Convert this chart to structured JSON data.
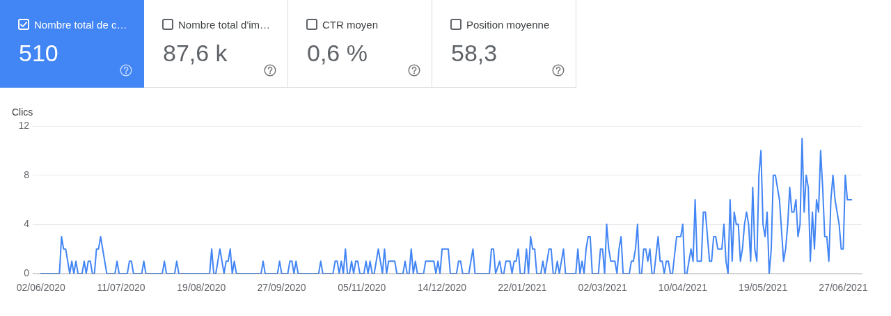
{
  "chart_data": [
    {
      "type": "other",
      "categories": [
        "Nombre total de c…",
        "Nombre total d'im…",
        "CTR moyen",
        "Position moyenne"
      ],
      "value_labels": [
        "510",
        "87,6 k",
        "0,6 %",
        "58,3"
      ],
      "colors": [
        "#4285f4",
        null,
        null,
        null
      ]
    },
    {
      "type": "line",
      "ylabel": "Clics",
      "color": "#4285f4",
      "x": [
        "2020-06-02",
        "2020-06-11",
        "2020-06-12",
        "2020-06-13",
        "2020-06-14",
        "2020-06-16",
        "2020-06-17",
        "2020-06-18",
        "2020-06-19",
        "2020-06-20",
        "2020-06-22",
        "2020-06-23",
        "2020-06-24",
        "2020-06-25",
        "2020-06-26",
        "2020-06-27",
        "2020-06-28",
        "2020-06-29",
        "2020-06-30",
        "2020-07-01",
        "2020-07-04",
        "2020-07-08",
        "2020-07-09",
        "2020-07-10",
        "2020-07-14",
        "2020-07-15",
        "2020-07-16",
        "2020-07-17",
        "2020-07-21",
        "2020-07-22",
        "2020-07-23",
        "2020-07-31",
        "2020-08-01",
        "2020-08-02",
        "2020-08-06",
        "2020-08-07",
        "2020-08-08",
        "2020-08-23",
        "2020-08-24",
        "2020-08-25",
        "2020-08-26",
        "2020-08-28",
        "2020-08-30",
        "2020-08-31",
        "2020-09-01",
        "2020-09-02",
        "2020-09-03",
        "2020-09-04",
        "2020-09-05",
        "2020-09-17",
        "2020-09-18",
        "2020-09-19",
        "2020-09-25",
        "2020-09-26",
        "2020-09-27",
        "2020-09-30",
        "2020-10-01",
        "2020-10-02",
        "2020-10-03",
        "2020-10-04",
        "2020-10-05",
        "2020-10-15",
        "2020-10-16",
        "2020-10-17",
        "2020-10-22",
        "2020-10-23",
        "2020-10-24",
        "2020-10-25",
        "2020-10-26",
        "2020-10-27",
        "2020-10-28",
        "2020-10-29",
        "2020-10-30",
        "2020-10-31",
        "2020-11-01",
        "2020-11-02",
        "2020-11-03",
        "2020-11-04",
        "2020-11-06",
        "2020-11-07",
        "2020-11-08",
        "2020-11-09",
        "2020-11-10",
        "2020-11-11",
        "2020-11-13",
        "2020-11-15",
        "2020-11-16",
        "2020-11-17",
        "2020-11-18",
        "2020-11-21",
        "2020-11-22",
        "2020-11-25",
        "2020-11-26",
        "2020-11-27",
        "2020-11-28",
        "2020-11-29",
        "2020-11-30",
        "2020-12-01",
        "2020-12-02",
        "2020-12-05",
        "2020-12-06",
        "2020-12-10",
        "2020-12-11",
        "2020-12-12",
        "2020-12-13",
        "2020-12-14",
        "2020-12-17",
        "2020-12-18",
        "2020-12-21",
        "2020-12-22",
        "2020-12-23",
        "2020-12-24",
        "2020-12-27",
        "2020-12-29",
        "2020-12-30",
        "2021-01-06",
        "2021-01-07",
        "2021-01-08",
        "2021-01-09",
        "2021-01-11",
        "2021-01-12",
        "2021-01-13",
        "2021-01-14",
        "2021-01-16",
        "2021-01-17",
        "2021-01-18",
        "2021-01-19",
        "2021-01-20",
        "2021-01-21",
        "2021-01-23",
        "2021-01-24",
        "2021-01-25",
        "2021-01-26",
        "2021-01-27",
        "2021-01-28",
        "2021-01-29",
        "2021-01-31",
        "2021-02-01",
        "2021-02-02",
        "2021-02-04",
        "2021-02-05",
        "2021-02-06",
        "2021-02-07",
        "2021-02-08",
        "2021-02-09",
        "2021-02-10",
        "2021-02-11",
        "2021-02-12",
        "2021-02-17",
        "2021-02-18",
        "2021-02-19",
        "2021-02-20",
        "2021-02-21",
        "2021-02-22",
        "2021-02-23",
        "2021-02-24",
        "2021-02-25",
        "2021-02-28",
        "2021-03-01",
        "2021-03-02",
        "2021-03-03",
        "2021-03-04",
        "2021-03-05",
        "2021-03-06",
        "2021-03-08",
        "2021-03-09",
        "2021-03-10",
        "2021-03-11",
        "2021-03-12",
        "2021-03-15",
        "2021-03-16",
        "2021-03-17",
        "2021-03-18",
        "2021-03-19",
        "2021-03-20",
        "2021-03-21",
        "2021-03-22",
        "2021-03-23",
        "2021-03-24",
        "2021-03-25",
        "2021-03-26",
        "2021-03-27",
        "2021-03-29",
        "2021-03-30",
        "2021-03-31",
        "2021-04-01",
        "2021-04-02",
        "2021-04-03",
        "2021-04-04",
        "2021-04-05",
        "2021-04-07",
        "2021-04-09",
        "2021-04-10",
        "2021-04-11",
        "2021-04-12",
        "2021-04-14",
        "2021-04-15",
        "2021-04-16",
        "2021-04-17",
        "2021-04-19",
        "2021-04-20",
        "2021-04-21",
        "2021-04-23",
        "2021-04-24",
        "2021-04-25",
        "2021-04-26",
        "2021-04-27",
        "2021-04-29",
        "2021-04-30",
        "2021-05-01",
        "2021-05-02",
        "2021-05-03",
        "2021-05-04",
        "2021-05-05",
        "2021-05-06",
        "2021-05-07",
        "2021-05-08",
        "2021-05-09",
        "2021-05-10",
        "2021-05-11",
        "2021-05-12",
        "2021-05-13",
        "2021-05-14",
        "2021-05-15",
        "2021-05-16",
        "2021-05-17",
        "2021-05-18",
        "2021-05-19",
        "2021-05-20",
        "2021-05-21",
        "2021-05-22",
        "2021-05-23",
        "2021-05-24",
        "2021-05-25",
        "2021-05-27",
        "2021-05-29",
        "2021-05-30",
        "2021-05-31",
        "2021-06-01",
        "2021-06-02",
        "2021-06-03",
        "2021-06-04",
        "2021-06-05",
        "2021-06-06",
        "2021-06-07",
        "2021-06-08",
        "2021-06-09",
        "2021-06-10",
        "2021-06-11",
        "2021-06-12",
        "2021-06-13",
        "2021-06-14",
        "2021-06-15",
        "2021-06-16",
        "2021-06-17",
        "2021-06-18",
        "2021-06-19",
        "2021-06-20",
        "2021-06-21",
        "2021-06-22",
        "2021-06-23",
        "2021-06-24",
        "2021-06-25",
        "2021-06-26",
        "2021-06-27",
        "2021-06-28",
        "2021-06-29",
        "2021-07-01"
      ],
      "values": [
        0,
        0,
        3,
        2,
        2,
        0,
        1,
        0,
        1,
        0,
        0,
        1,
        0,
        1,
        1,
        0,
        0,
        2,
        2,
        3,
        0,
        0,
        1,
        0,
        0,
        1,
        1,
        0,
        0,
        1,
        0,
        0,
        1,
        0,
        0,
        1,
        0,
        0,
        2,
        0,
        0,
        2,
        0,
        1,
        1,
        2,
        0,
        1,
        0,
        0,
        1,
        0,
        0,
        1,
        0,
        0,
        1,
        1,
        0,
        1,
        0,
        0,
        1,
        0,
        0,
        1,
        1,
        0,
        1,
        0,
        2,
        0,
        0,
        1,
        0,
        1,
        1,
        0,
        0,
        1,
        0,
        1,
        0,
        0,
        2,
        0,
        2,
        0,
        1,
        1,
        0,
        0,
        1,
        0,
        0,
        2,
        0,
        1,
        0,
        0,
        1,
        1,
        0,
        1,
        0,
        2,
        2,
        0,
        0,
        1,
        1,
        0,
        0,
        2,
        0,
        0,
        2,
        2,
        0,
        1,
        0,
        0,
        1,
        1,
        0,
        1,
        1,
        2,
        0,
        0,
        2,
        0,
        3,
        2,
        2,
        0,
        0,
        1,
        0,
        2,
        2,
        0,
        0,
        1,
        0,
        1,
        2,
        0,
        0,
        2,
        0,
        1,
        0,
        2,
        3,
        3,
        0,
        0,
        2,
        2,
        0,
        4,
        2,
        1,
        1,
        0,
        2,
        3,
        0,
        0,
        1,
        1,
        2,
        4,
        0,
        0,
        2,
        2,
        1,
        2,
        0,
        0,
        3,
        1,
        1,
        0,
        1,
        1,
        0,
        0,
        3,
        3,
        4,
        0,
        0,
        2,
        1,
        6,
        1,
        1,
        5,
        5,
        1,
        1,
        3,
        3,
        2,
        2,
        4,
        1,
        0,
        6,
        1,
        5,
        4,
        4,
        1,
        2,
        4,
        5,
        4,
        1,
        7,
        2,
        1,
        8,
        10,
        4,
        3,
        5,
        0,
        2,
        8,
        8,
        6,
        1,
        2,
        4,
        7,
        5,
        5,
        6,
        3,
        4,
        11,
        5,
        8,
        7,
        1,
        5,
        2,
        6,
        5,
        10,
        7,
        3,
        3,
        1,
        6,
        8,
        6,
        5,
        4,
        2,
        2,
        8,
        6,
        6
      ],
      "xlim": [
        "2020-05-29",
        "2021-07-06"
      ],
      "xticks": [
        {
          "value": "2020-06-02",
          "label": "02/06/2020"
        },
        {
          "value": "2020-07-11",
          "label": "11/07/2020"
        },
        {
          "value": "2020-08-19",
          "label": "19/08/2020"
        },
        {
          "value": "2020-09-27",
          "label": "27/09/2020"
        },
        {
          "value": "2020-11-05",
          "label": "05/11/2020"
        },
        {
          "value": "2020-12-14",
          "label": "14/12/2020"
        },
        {
          "value": "2021-01-22",
          "label": "22/01/2021"
        },
        {
          "value": "2021-03-02",
          "label": "02/03/2021"
        },
        {
          "value": "2021-04-10",
          "label": "10/04/2021"
        },
        {
          "value": "2021-05-19",
          "label": "19/05/2021"
        },
        {
          "value": "2021-06-27",
          "label": "27/06/2021"
        }
      ],
      "ylim": [
        0,
        12
      ],
      "yticks": [
        0,
        4,
        8,
        12
      ],
      "grid": "y"
    }
  ]
}
